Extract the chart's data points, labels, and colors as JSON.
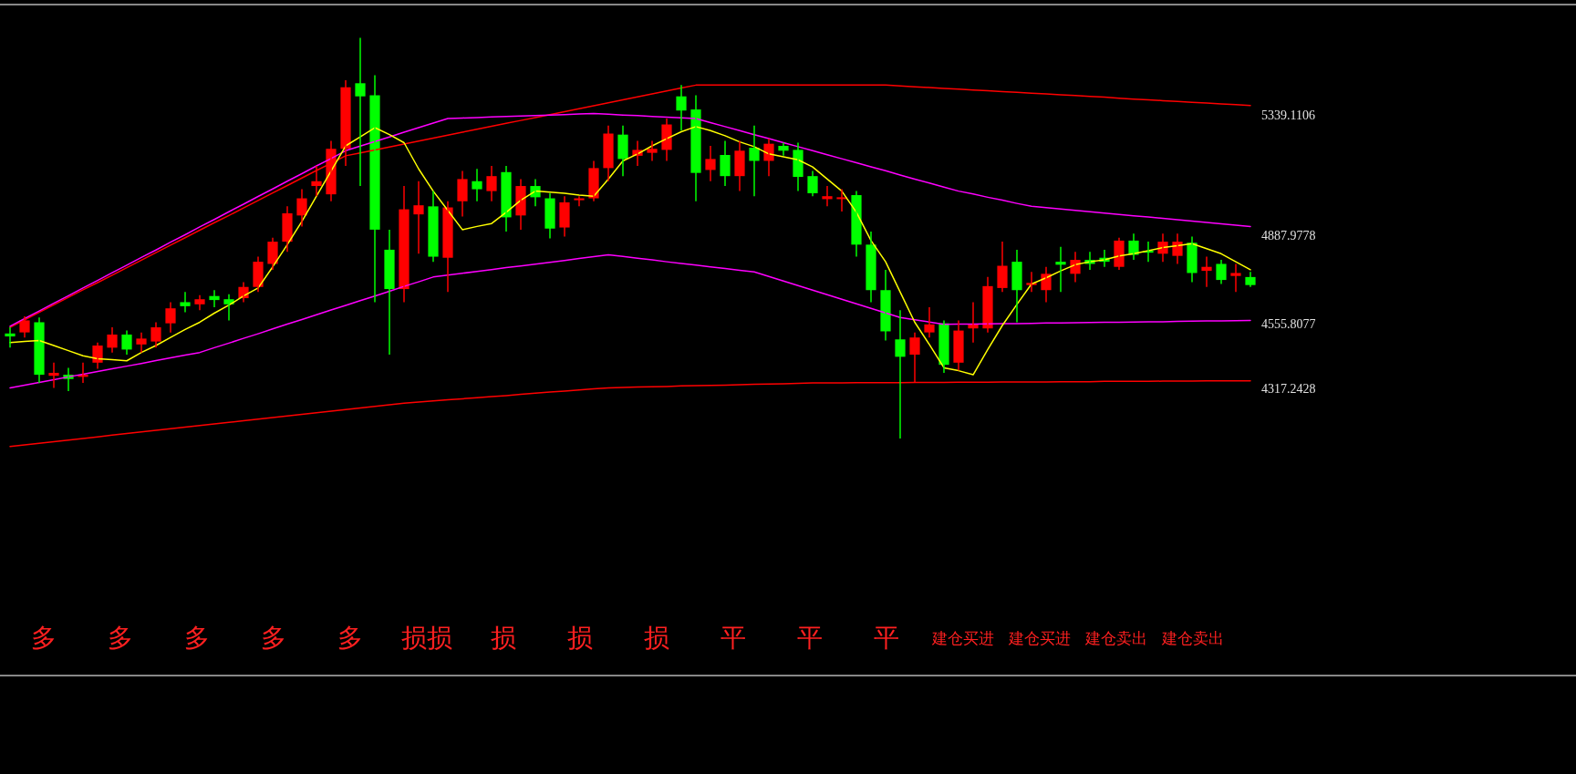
{
  "chart_data": {
    "type": "candlestick",
    "tick_labels": "y",
    "ylim": [
      3244,
      5751
    ],
    "yticks": [
      5339.1106,
      4887.9778,
      4555.8077,
      4317.2428
    ],
    "categories": [
      null,
      null,
      null,
      null,
      null,
      null,
      null,
      null,
      null,
      null,
      null,
      null,
      null,
      null,
      null,
      null,
      null,
      null,
      null,
      null,
      null,
      null,
      null,
      null,
      null,
      null,
      null,
      null,
      null,
      null,
      null,
      null,
      null,
      null,
      null,
      null,
      null,
      null,
      null,
      null,
      null,
      null,
      null,
      null,
      null,
      null,
      null,
      null,
      null,
      null,
      null,
      null,
      null,
      null,
      null,
      null,
      null,
      null,
      null,
      null,
      null,
      null,
      null,
      null,
      null,
      null,
      null,
      null,
      null,
      null,
      null,
      null,
      null,
      null,
      null,
      null,
      null,
      null,
      null,
      null,
      null,
      null,
      null,
      null,
      null,
      null
    ],
    "ohlc": [
      [
        4522,
        4545,
        4469,
        4511
      ],
      [
        4526,
        4586,
        4507,
        4571
      ],
      [
        4564,
        4582,
        4337,
        4368
      ],
      [
        4364,
        4413,
        4319,
        4375
      ],
      [
        4368,
        4394,
        4307,
        4352
      ],
      [
        4360,
        4413,
        4337,
        4368
      ],
      [
        4413,
        4488,
        4390,
        4477
      ],
      [
        4469,
        4545,
        4451,
        4518
      ],
      [
        4518,
        4533,
        4443,
        4462
      ],
      [
        4481,
        4526,
        4451,
        4503
      ],
      [
        4492,
        4564,
        4469,
        4545
      ],
      [
        4560,
        4639,
        4526,
        4616
      ],
      [
        4639,
        4677,
        4601,
        4624
      ],
      [
        4631,
        4665,
        4609,
        4650
      ],
      [
        4662,
        4684,
        4620,
        4647
      ],
      [
        4650,
        4669,
        4571,
        4631
      ],
      [
        4654,
        4714,
        4639,
        4696
      ],
      [
        4696,
        4809,
        4677,
        4790
      ],
      [
        4782,
        4880,
        4760,
        4865
      ],
      [
        4865,
        4997,
        4827,
        4971
      ],
      [
        4963,
        5061,
        4922,
        5027
      ],
      [
        5073,
        5148,
        5035,
        5091
      ],
      [
        5042,
        5242,
        5016,
        5212
      ],
      [
        5212,
        5468,
        5148,
        5442
      ],
      [
        5457,
        5627,
        5073,
        5408
      ],
      [
        5412,
        5487,
        4639,
        4910
      ],
      [
        4835,
        4910,
        4443,
        4688
      ],
      [
        4688,
        5073,
        4639,
        4986
      ],
      [
        4967,
        5091,
        4820,
        5001
      ],
      [
        4997,
        5054,
        4790,
        4809
      ],
      [
        4805,
        5016,
        4677,
        4993
      ],
      [
        5016,
        5129,
        4959,
        5099
      ],
      [
        5091,
        5137,
        5016,
        5061
      ],
      [
        5054,
        5148,
        5016,
        5110
      ],
      [
        5125,
        5148,
        4903,
        4956
      ],
      [
        4963,
        5099,
        4910,
        5073
      ],
      [
        5073,
        5099,
        4997,
        5031
      ],
      [
        5027,
        5046,
        4877,
        4914
      ],
      [
        4918,
        5035,
        4884,
        5012
      ],
      [
        5020,
        5035,
        4997,
        5027
      ],
      [
        5027,
        5167,
        5016,
        5140
      ],
      [
        5140,
        5299,
        5091,
        5269
      ],
      [
        5265,
        5299,
        5110,
        5174
      ],
      [
        5186,
        5242,
        5148,
        5208
      ],
      [
        5197,
        5242,
        5167,
        5212
      ],
      [
        5208,
        5325,
        5167,
        5303
      ],
      [
        5408,
        5450,
        5280,
        5355
      ],
      [
        5359,
        5412,
        5016,
        5122
      ],
      [
        5133,
        5223,
        5091,
        5174
      ],
      [
        5189,
        5242,
        5073,
        5110
      ],
      [
        5110,
        5242,
        5054,
        5205
      ],
      [
        5216,
        5299,
        5035,
        5167
      ],
      [
        5167,
        5250,
        5110,
        5231
      ],
      [
        5223,
        5235,
        5186,
        5205
      ],
      [
        5208,
        5235,
        5054,
        5107
      ],
      [
        5110,
        5129,
        5035,
        5046
      ],
      [
        5024,
        5073,
        4997,
        5035
      ],
      [
        5024,
        5061,
        4978,
        5031
      ],
      [
        5039,
        5054,
        4809,
        4854
      ],
      [
        4854,
        4903,
        4639,
        4684
      ],
      [
        4684,
        4760,
        4496,
        4530
      ],
      [
        4500,
        4609,
        4130,
        4435
      ],
      [
        4443,
        4526,
        4337,
        4507
      ],
      [
        4526,
        4620,
        4507,
        4556
      ],
      [
        4560,
        4571,
        4375,
        4405
      ],
      [
        4413,
        4571,
        4383,
        4533
      ],
      [
        4541,
        4639,
        4488,
        4556
      ],
      [
        4541,
        4733,
        4526,
        4699
      ],
      [
        4692,
        4865,
        4677,
        4775
      ],
      [
        4790,
        4835,
        4564,
        4684
      ],
      [
        4703,
        4752,
        4677,
        4711
      ],
      [
        4684,
        4771,
        4639,
        4745
      ],
      [
        4790,
        4846,
        4677,
        4779
      ],
      [
        4745,
        4827,
        4714,
        4797
      ],
      [
        4797,
        4827,
        4760,
        4782
      ],
      [
        4805,
        4835,
        4771,
        4790
      ],
      [
        4771,
        4880,
        4760,
        4869
      ],
      [
        4869,
        4895,
        4797,
        4816
      ],
      [
        4831,
        4865,
        4790,
        4824
      ],
      [
        4820,
        4895,
        4790,
        4865
      ],
      [
        4812,
        4895,
        4782,
        4865
      ],
      [
        4861,
        4884,
        4714,
        4748
      ],
      [
        4756,
        4809,
        4696,
        4771
      ],
      [
        4782,
        4797,
        4707,
        4722
      ],
      [
        4737,
        4782,
        4677,
        4748
      ],
      [
        4733,
        4752,
        4696,
        4703
      ]
    ],
    "colors": [
      "#00ff00",
      "#ff0000",
      "#00ff00",
      "#ff0000",
      "#00ff00",
      "#ff0000",
      "#ff0000",
      "#ff0000",
      "#00ff00",
      "#ff0000",
      "#ff0000",
      "#ff0000",
      "#00ff00",
      "#ff0000",
      "#00ff00",
      "#00ff00",
      "#ff0000",
      "#ff0000",
      "#ff0000",
      "#ff0000",
      "#ff0000",
      "#ff0000",
      "#ff0000",
      "#ff0000",
      "#00ff00",
      "#00ff00",
      "#00ff00",
      "#ff0000",
      "#ff0000",
      "#00ff00",
      "#ff0000",
      "#ff0000",
      "#00ff00",
      "#ff0000",
      "#00ff00",
      "#ff0000",
      "#00ff00",
      "#00ff00",
      "#ff0000",
      "#ff0000",
      "#ff0000",
      "#ff0000",
      "#00ff00",
      "#ff0000",
      "#ff0000",
      "#ff0000",
      "#00ff00",
      "#00ff00",
      "#ff0000",
      "#00ff00",
      "#ff0000",
      "#00ff00",
      "#ff0000",
      "#00ff00",
      "#00ff00",
      "#00ff00",
      "#ff0000",
      "#ff0000",
      "#00ff00",
      "#00ff00",
      "#00ff00",
      "#00ff00",
      "#ff0000",
      "#ff0000",
      "#00ff00",
      "#ff0000",
      "#ff0000",
      "#ff0000",
      "#ff0000",
      "#00ff00",
      "#ff0000",
      "#ff0000",
      "#00ff00",
      "#ff0000",
      "#00ff00",
      "#00ff00",
      "#ff0000",
      "#00ff00",
      "#00ff00",
      "#ff0000",
      "#ff0000",
      "#00ff00",
      "#ff0000",
      "#00ff00",
      "#ff0000",
      "#00ff00"
    ],
    "series": [
      {
        "type": "line",
        "color": "#ff0000",
        "values": [
          4545,
          4573,
          4601,
          4629,
          4657,
          4685,
          4712,
          4740,
          4768,
          4796,
          4824,
          4852,
          4880,
          4908,
          4936,
          4963,
          4991,
          5019,
          5047,
          5075,
          5103,
          5131,
          5158,
          5186,
          5197,
          5208,
          5219,
          5230,
          5241,
          5252,
          5263,
          5274,
          5285,
          5296,
          5307,
          5318,
          5329,
          5340,
          5351,
          5362,
          5373,
          5384,
          5395,
          5406,
          5417,
          5428,
          5439,
          5450,
          5450,
          5450,
          5450,
          5450,
          5450,
          5450,
          5450,
          5450,
          5450,
          5450,
          5450,
          5450,
          5450,
          5447,
          5444,
          5441,
          5438,
          5435,
          5432,
          5429,
          5426,
          5423,
          5420,
          5417,
          5414,
          5411,
          5408,
          5405,
          5401,
          5398,
          5395,
          5392,
          5389,
          5386,
          5383,
          5380,
          5377,
          5374
        ]
      },
      {
        "type": "line",
        "color": "#ff00ff",
        "values": [
          4549,
          4578,
          4606,
          4635,
          4663,
          4692,
          4720,
          4749,
          4777,
          4806,
          4834,
          4863,
          4891,
          4920,
          4948,
          4977,
          5005,
          5034,
          5062,
          5091,
          5119,
          5148,
          5176,
          5205,
          5222,
          5239,
          5256,
          5274,
          5291,
          5308,
          5325,
          5327,
          5329,
          5331,
          5333,
          5335,
          5336,
          5338,
          5340,
          5342,
          5344,
          5341,
          5338,
          5336,
          5333,
          5330,
          5328,
          5325,
          5310,
          5295,
          5280,
          5265,
          5250,
          5235,
          5220,
          5205,
          5190,
          5175,
          5160,
          5145,
          5130,
          5114,
          5099,
          5084,
          5069,
          5054,
          5043,
          5031,
          5020,
          5008,
          4997,
          4992,
          4987,
          4982,
          4977,
          4972,
          4967,
          4962,
          4957,
          4952,
          4947,
          4942,
          4937,
          4932,
          4927,
          4922
        ]
      },
      {
        "type": "line",
        "color": "#ff00ff",
        "values": [
          4319,
          4329,
          4339,
          4349,
          4360,
          4370,
          4380,
          4390,
          4400,
          4410,
          4421,
          4431,
          4441,
          4451,
          4469,
          4486,
          4504,
          4521,
          4539,
          4557,
          4574,
          4592,
          4610,
          4627,
          4645,
          4662,
          4680,
          4698,
          4715,
          4733,
          4740,
          4747,
          4754,
          4761,
          4768,
          4774,
          4781,
          4788,
          4795,
          4802,
          4809,
          4816,
          4810,
          4803,
          4797,
          4790,
          4784,
          4778,
          4771,
          4765,
          4758,
          4752,
          4735,
          4718,
          4701,
          4684,
          4667,
          4650,
          4633,
          4616,
          4599,
          4582,
          4573,
          4565,
          4556,
          4557,
          4557,
          4558,
          4559,
          4559,
          4560,
          4561,
          4561,
          4562,
          4563,
          4564,
          4564,
          4565,
          4566,
          4566,
          4567,
          4568,
          4569,
          4569,
          4570,
          4571
        ]
      },
      {
        "type": "line",
        "color": "#ff0000",
        "values": [
          4100,
          4106,
          4112,
          4118,
          4124,
          4130,
          4136,
          4142,
          4148,
          4154,
          4160,
          4166,
          4172,
          4178,
          4184,
          4190,
          4196,
          4202,
          4208,
          4214,
          4220,
          4226,
          4232,
          4238,
          4244,
          4250,
          4256,
          4262,
          4266,
          4270,
          4274,
          4278,
          4282,
          4286,
          4290,
          4295,
          4299,
          4303,
          4307,
          4311,
          4315,
          4319,
          4320,
          4322,
          4323,
          4324,
          4326,
          4327,
          4328,
          4329,
          4331,
          4332,
          4333,
          4334,
          4336,
          4337,
          4337,
          4337,
          4338,
          4338,
          4338,
          4338,
          4339,
          4339,
          4339,
          4340,
          4340,
          4340,
          4341,
          4341,
          4341,
          4341,
          4342,
          4342,
          4342,
          4343,
          4343,
          4343,
          4343,
          4344,
          4344,
          4344,
          4345,
          4345,
          4345,
          4345
        ]
      },
      {
        "type": "line",
        "color": "#ffff00",
        "values": [
          4488,
          4492,
          4496,
          4477,
          4458,
          4439,
          4428,
          4424,
          4420,
          4451,
          4477,
          4507,
          4537,
          4564,
          4598,
          4628,
          4662,
          4692,
          4771,
          4854,
          4941,
          5035,
          5129,
          5223,
          5257,
          5291,
          5265,
          5235,
          5137,
          5054,
          4982,
          4910,
          4922,
          4933,
          4975,
          5020,
          5054,
          5050,
          5046,
          5039,
          5035,
          5099,
          5167,
          5193,
          5223,
          5250,
          5276,
          5295,
          5280,
          5261,
          5238,
          5220,
          5193,
          5182,
          5171,
          5144,
          5099,
          5054,
          4975,
          4869,
          4790,
          4677,
          4564,
          4481,
          4394,
          4383,
          4368,
          4462,
          4552,
          4631,
          4707,
          4730,
          4756,
          4779,
          4790,
          4797,
          4812,
          4820,
          4831,
          4843,
          4850,
          4858,
          4839,
          4820,
          4790,
          4760
        ]
      }
    ],
    "annotations": [
      "多",
      "多",
      "多",
      "多",
      "多",
      "损损",
      "损",
      "损",
      "损",
      "平",
      "平",
      "平",
      "建仓买进",
      "建仓买进",
      "建仓卖出",
      "建仓卖出"
    ]
  }
}
